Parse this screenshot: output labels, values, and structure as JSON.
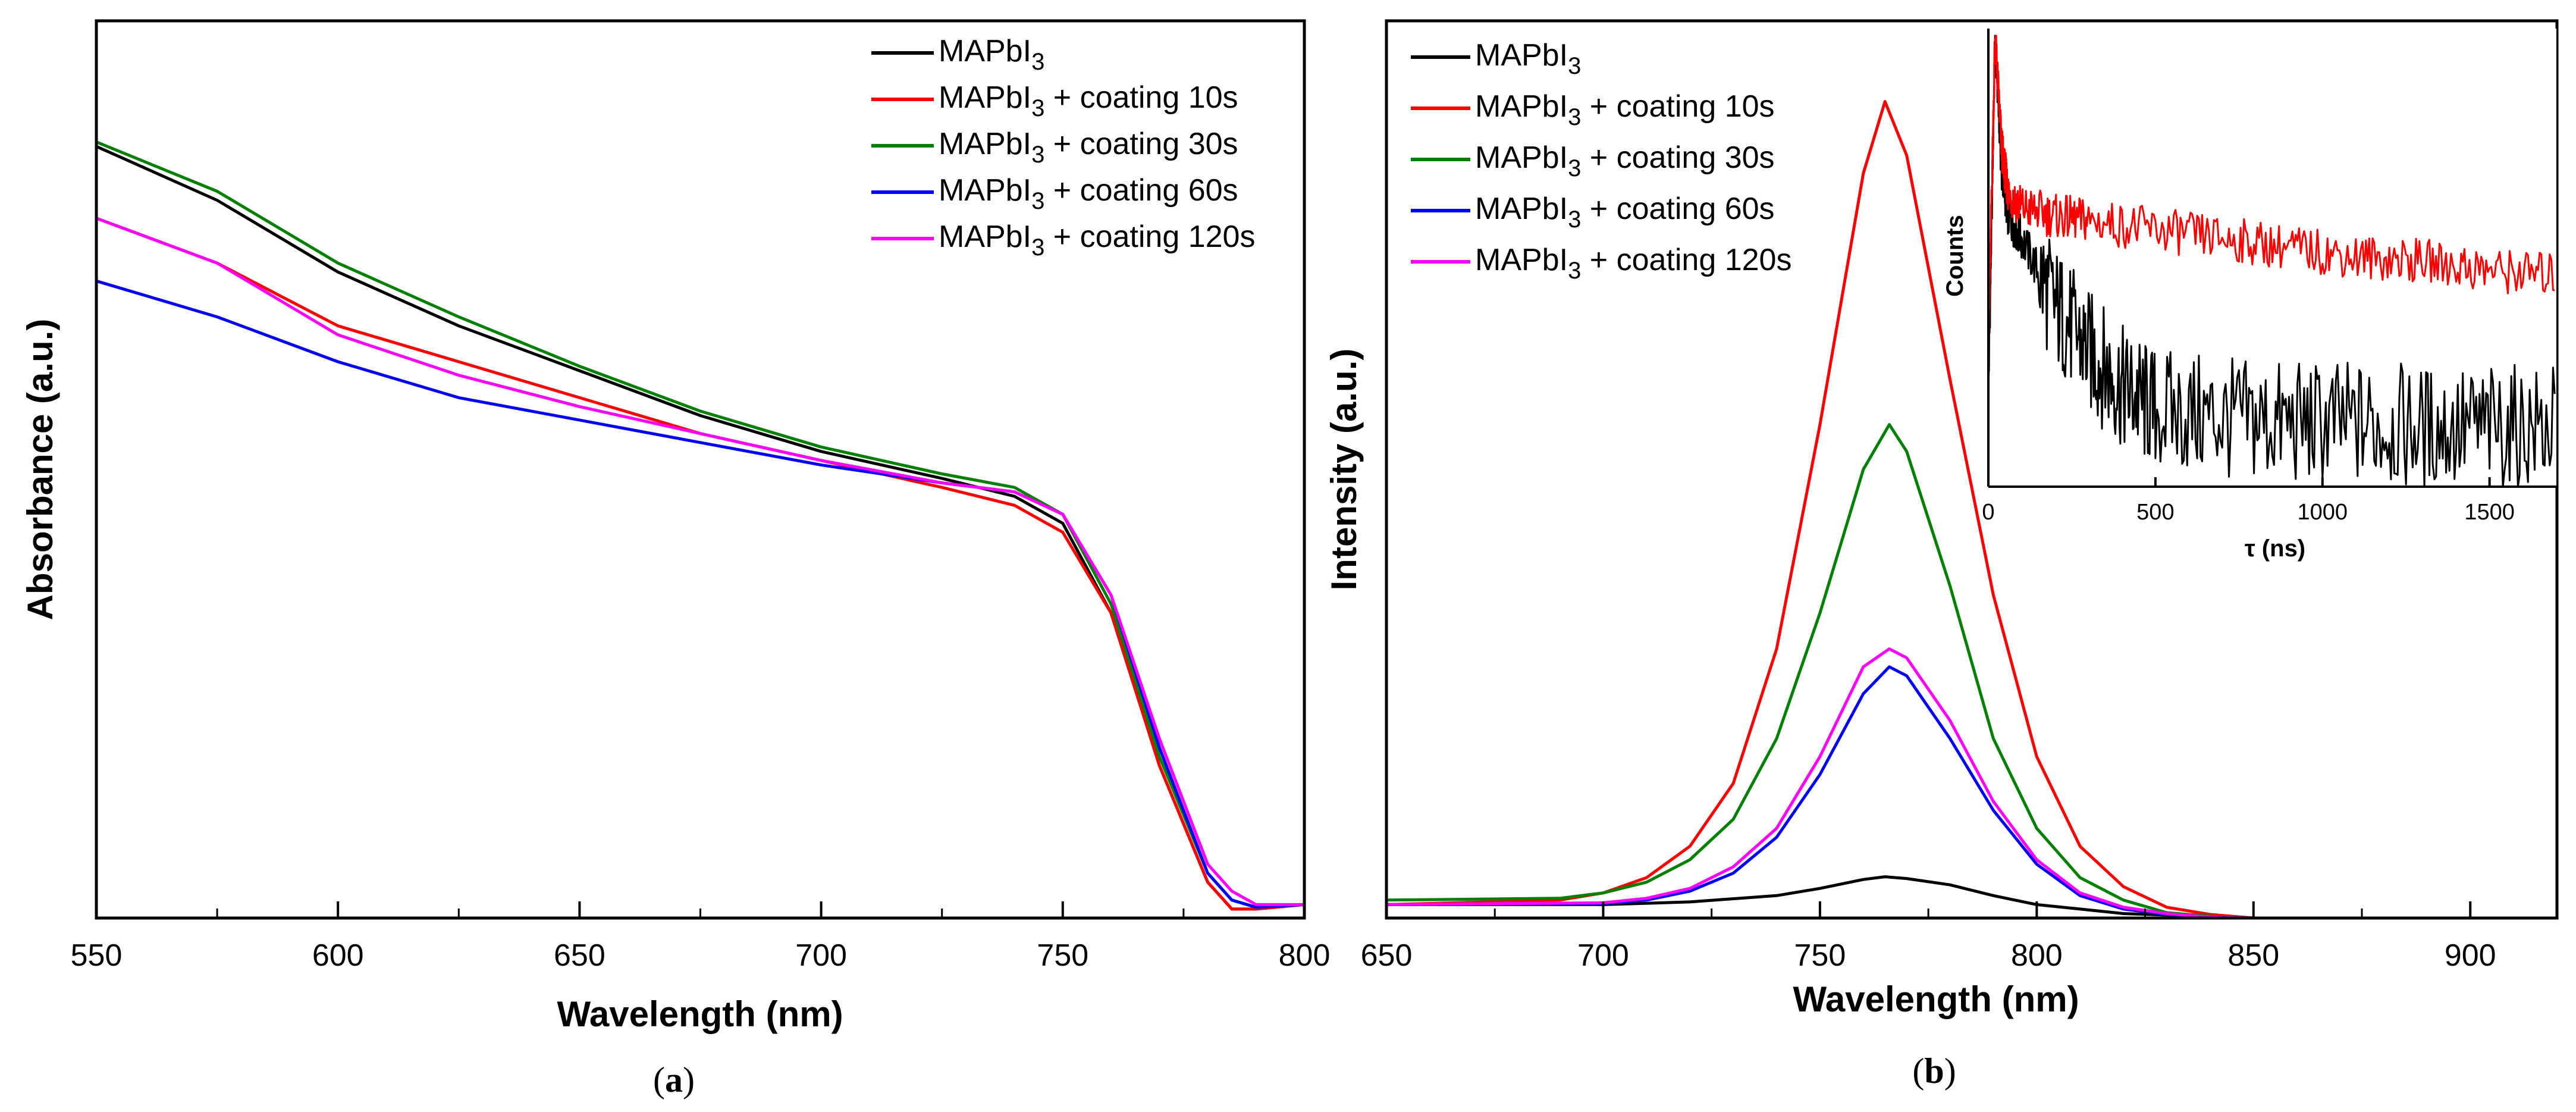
{
  "colors": {
    "black": "#000000",
    "red": "#ff0000",
    "green": "#008000",
    "blue": "#0000ff",
    "magenta": "#ff00ff"
  },
  "panel_a": {
    "label_prefix": "(",
    "label_letter": "a",
    "label_suffix": ")"
  },
  "panel_b": {
    "label_prefix": "(",
    "label_letter": "b",
    "label_suffix": ")"
  },
  "legend_entries": [
    {
      "base": "MAPbI",
      "sub": "3",
      "suffix": "",
      "color": "#000000"
    },
    {
      "base": "MAPbI",
      "sub": "3",
      "suffix": " + coating 10s",
      "color": "#ff0000"
    },
    {
      "base": "MAPbI",
      "sub": "3",
      "suffix": " + coating 30s",
      "color": "#008000"
    },
    {
      "base": "MAPbI",
      "sub": "3",
      "suffix": " + coating 60s",
      "color": "#0000ff"
    },
    {
      "base": "MAPbI",
      "sub": "3",
      "suffix": " + coating 120s",
      "color": "#ff00ff"
    }
  ],
  "chart_data": [
    {
      "type": "line",
      "title": "",
      "xlabel": "Wavelength (nm)",
      "ylabel": "Absorbance (a.u.)",
      "xlim": [
        550,
        800
      ],
      "ylim": [
        0,
        1
      ],
      "xticks": [
        550,
        600,
        650,
        700,
        750,
        800
      ],
      "legend_position": "top-right",
      "series": [
        {
          "name": "MAPbI3",
          "color": "#000000",
          "x": [
            550,
            575,
            600,
            625,
            650,
            675,
            700,
            725,
            740,
            750,
            760,
            770,
            780,
            785,
            790,
            800
          ],
          "y": [
            0.86,
            0.8,
            0.72,
            0.66,
            0.61,
            0.56,
            0.52,
            0.49,
            0.47,
            0.44,
            0.34,
            0.17,
            0.04,
            0.01,
            0.01,
            0.015
          ]
        },
        {
          "name": "MAPbI3 + coating 10s",
          "color": "#ff0000",
          "x": [
            550,
            575,
            600,
            625,
            650,
            675,
            700,
            725,
            740,
            750,
            760,
            770,
            780,
            785,
            790,
            800
          ],
          "y": [
            0.78,
            0.73,
            0.66,
            0.62,
            0.58,
            0.54,
            0.51,
            0.48,
            0.46,
            0.43,
            0.34,
            0.17,
            0.04,
            0.01,
            0.01,
            0.015
          ]
        },
        {
          "name": "MAPbI3 + coating 30s",
          "color": "#008000",
          "x": [
            550,
            575,
            600,
            625,
            650,
            675,
            700,
            725,
            740,
            750,
            760,
            770,
            780,
            785,
            790,
            800
          ],
          "y": [
            0.865,
            0.81,
            0.73,
            0.67,
            0.615,
            0.565,
            0.525,
            0.495,
            0.48,
            0.45,
            0.35,
            0.18,
            0.05,
            0.02,
            0.012,
            0.015
          ]
        },
        {
          "name": "MAPbI3 + coating 60s",
          "color": "#0000ff",
          "x": [
            550,
            575,
            600,
            625,
            650,
            675,
            700,
            725,
            740,
            750,
            760,
            770,
            780,
            785,
            790,
            800
          ],
          "y": [
            0.71,
            0.67,
            0.62,
            0.58,
            0.555,
            0.53,
            0.505,
            0.485,
            0.475,
            0.45,
            0.36,
            0.19,
            0.05,
            0.02,
            0.012,
            0.015
          ]
        },
        {
          "name": "MAPbI3 + coating 120s",
          "color": "#ff00ff",
          "x": [
            550,
            575,
            600,
            625,
            650,
            675,
            700,
            725,
            740,
            750,
            760,
            770,
            780,
            785,
            790,
            800
          ],
          "y": [
            0.78,
            0.73,
            0.65,
            0.605,
            0.57,
            0.54,
            0.51,
            0.485,
            0.475,
            0.45,
            0.36,
            0.2,
            0.06,
            0.03,
            0.015,
            0.015
          ]
        }
      ]
    },
    {
      "type": "line",
      "title": "",
      "xlabel": "Wavelength (nm)",
      "ylabel": "Intensity (a.u.)",
      "xlim": [
        650,
        920
      ],
      "ylim": [
        0,
        1
      ],
      "xticks": [
        650,
        700,
        750,
        800,
        850,
        900
      ],
      "legend_position": "top-left",
      "series": [
        {
          "name": "MAPbI3",
          "color": "#000000",
          "x": [
            650,
            700,
            720,
            740,
            750,
            760,
            765,
            770,
            780,
            790,
            800,
            810,
            820,
            850,
            920
          ],
          "y": [
            0.015,
            0.015,
            0.018,
            0.025,
            0.033,
            0.043,
            0.046,
            0.044,
            0.037,
            0.025,
            0.015,
            0.01,
            0.005,
            0.0,
            0.0
          ]
        },
        {
          "name": "MAPbI3 + coating 10s",
          "color": "#ff0000",
          "x": [
            650,
            690,
            700,
            710,
            720,
            730,
            740,
            750,
            760,
            765,
            770,
            780,
            790,
            800,
            810,
            820,
            830,
            840,
            850,
            920
          ],
          "y": [
            0.015,
            0.02,
            0.028,
            0.045,
            0.08,
            0.15,
            0.3,
            0.55,
            0.83,
            0.91,
            0.85,
            0.6,
            0.36,
            0.18,
            0.08,
            0.035,
            0.012,
            0.004,
            0.0,
            0.0
          ]
        },
        {
          "name": "MAPbI3 + coating 30s",
          "color": "#008000",
          "x": [
            650,
            690,
            700,
            710,
            720,
            730,
            740,
            750,
            760,
            766,
            770,
            780,
            790,
            800,
            810,
            820,
            830,
            840,
            850,
            920
          ],
          "y": [
            0.02,
            0.022,
            0.028,
            0.04,
            0.065,
            0.11,
            0.2,
            0.34,
            0.5,
            0.55,
            0.52,
            0.37,
            0.2,
            0.1,
            0.045,
            0.02,
            0.006,
            0.002,
            0.0,
            0.0
          ]
        },
        {
          "name": "MAPbI3 + coating 60s",
          "color": "#0000ff",
          "x": [
            650,
            700,
            710,
            720,
            730,
            740,
            750,
            760,
            766,
            770,
            780,
            790,
            800,
            810,
            820,
            830,
            840,
            850,
            920
          ],
          "y": [
            0.015,
            0.016,
            0.02,
            0.03,
            0.05,
            0.09,
            0.16,
            0.25,
            0.28,
            0.27,
            0.2,
            0.12,
            0.06,
            0.025,
            0.01,
            0.004,
            0.001,
            0.0,
            0.0
          ]
        },
        {
          "name": "MAPbI3 + coating 120s",
          "color": "#ff00ff",
          "x": [
            650,
            700,
            710,
            720,
            730,
            740,
            750,
            760,
            766,
            770,
            780,
            790,
            800,
            810,
            820,
            830,
            840,
            850,
            920
          ],
          "y": [
            0.015,
            0.017,
            0.022,
            0.033,
            0.057,
            0.1,
            0.18,
            0.28,
            0.3,
            0.29,
            0.22,
            0.13,
            0.065,
            0.028,
            0.012,
            0.005,
            0.001,
            0.0,
            0.0
          ]
        }
      ]
    },
    {
      "type": "line",
      "title": "inset",
      "xlabel": "τ (ns)",
      "ylabel": "Counts",
      "xlim": [
        0,
        1700
      ],
      "ylim": [
        0,
        1
      ],
      "xticks": [
        0,
        500,
        1000,
        1500
      ],
      "series": [
        {
          "name": "MAPbI3",
          "color": "#000000",
          "x": [
            0,
            20,
            40,
            60,
            100,
            200,
            300,
            400,
            500,
            700,
            900,
            1100,
            1300,
            1500,
            1700
          ],
          "y": [
            0.2,
            1.0,
            0.7,
            0.6,
            0.55,
            0.4,
            0.3,
            0.22,
            0.17,
            0.15,
            0.14,
            0.14,
            0.13,
            0.13,
            0.13
          ]
        },
        {
          "name": "MAPbI3 + coating 10s",
          "color": "#ff0000",
          "x": [
            0,
            20,
            40,
            60,
            100,
            200,
            300,
            500,
            700,
            900,
            1100,
            1300,
            1500,
            1700
          ],
          "y": [
            0.3,
            1.0,
            0.75,
            0.65,
            0.62,
            0.6,
            0.59,
            0.57,
            0.55,
            0.53,
            0.51,
            0.5,
            0.48,
            0.47
          ]
        }
      ]
    }
  ]
}
